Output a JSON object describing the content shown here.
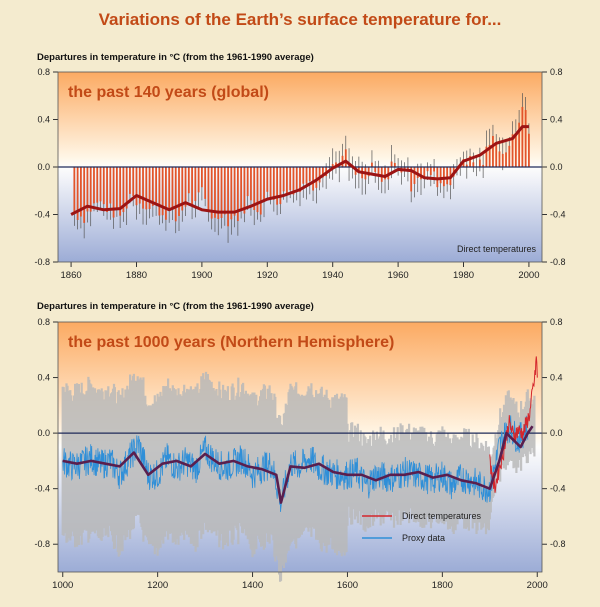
{
  "title": "Variations of the Earth’s surface temperature for...",
  "colors": {
    "background": "#f4ebcf",
    "title": "#c24a17",
    "direct_bars": "#e2542a",
    "smooth_line": "#9c1414",
    "proxy": "#2f8fd8",
    "uncertainty": "#b9b9b9"
  },
  "chart_data": [
    {
      "type": "bar",
      "ylabel": "Departures in temperature in °C (from the 1961-1990 average)",
      "panel_label": "the past 140 years (global)",
      "note": "Direct temperatures",
      "xlim": [
        1856,
        2004
      ],
      "ylim": [
        -0.8,
        0.8
      ],
      "xticks": [
        1860,
        1880,
        1900,
        1920,
        1940,
        1960,
        1980,
        2000
      ],
      "yticks": [
        -0.8,
        -0.4,
        0.0,
        0.4,
        0.8
      ],
      "yticks_left": [
        "0.8",
        "0.4",
        "0.0",
        "-0.4",
        "-0.8"
      ],
      "yticks_right": [
        "0.8",
        "0.4",
        "0.0",
        "-0.4",
        "-0.8"
      ],
      "series": [
        {
          "name": "Direct temperatures",
          "x": [
            1860,
            1862,
            1864,
            1866,
            1868,
            1870,
            1872,
            1874,
            1876,
            1878,
            1880,
            1882,
            1884,
            1886,
            1888,
            1890,
            1892,
            1894,
            1896,
            1898,
            1900,
            1902,
            1904,
            1906,
            1908,
            1910,
            1912,
            1914,
            1916,
            1918,
            1920,
            1922,
            1924,
            1926,
            1928,
            1930,
            1932,
            1934,
            1936,
            1938,
            1940,
            1942,
            1944,
            1946,
            1948,
            1950,
            1952,
            1954,
            1956,
            1958,
            1960,
            1962,
            1964,
            1966,
            1968,
            1970,
            1972,
            1974,
            1976,
            1978,
            1980,
            1982,
            1984,
            1986,
            1988,
            1990,
            1992,
            1994,
            1996,
            1998,
            2000
          ],
          "values": [
            -0.38,
            -0.4,
            -0.42,
            -0.35,
            -0.3,
            -0.32,
            -0.36,
            -0.4,
            -0.4,
            -0.22,
            -0.28,
            -0.3,
            -0.35,
            -0.33,
            -0.4,
            -0.38,
            -0.45,
            -0.36,
            -0.25,
            -0.33,
            -0.2,
            -0.35,
            -0.45,
            -0.37,
            -0.45,
            -0.42,
            -0.4,
            -0.27,
            -0.33,
            -0.35,
            -0.25,
            -0.25,
            -0.28,
            -0.2,
            -0.22,
            -0.15,
            -0.12,
            -0.17,
            -0.08,
            -0.02,
            0.02,
            0.05,
            0.1,
            -0.05,
            -0.08,
            -0.12,
            -0.02,
            -0.1,
            -0.15,
            0.05,
            -0.02,
            0.0,
            -0.15,
            -0.06,
            -0.1,
            -0.05,
            -0.12,
            -0.15,
            -0.1,
            -0.05,
            0.08,
            0.05,
            0.02,
            0.05,
            0.2,
            0.25,
            0.1,
            0.2,
            0.25,
            0.55,
            0.3
          ]
        },
        {
          "name": "smoothed",
          "x": [
            1860,
            1865,
            1870,
            1875,
            1880,
            1885,
            1890,
            1895,
            1900,
            1905,
            1910,
            1915,
            1920,
            1925,
            1930,
            1935,
            1940,
            1944,
            1948,
            1952,
            1956,
            1960,
            1964,
            1968,
            1972,
            1976,
            1980,
            1985,
            1990,
            1995,
            1998,
            2000
          ],
          "values": [
            -0.4,
            -0.33,
            -0.36,
            -0.35,
            -0.24,
            -0.3,
            -0.36,
            -0.3,
            -0.36,
            -0.38,
            -0.38,
            -0.33,
            -0.27,
            -0.24,
            -0.19,
            -0.11,
            -0.01,
            0.05,
            -0.04,
            -0.06,
            -0.08,
            -0.02,
            -0.03,
            -0.09,
            -0.1,
            -0.09,
            0.05,
            0.1,
            0.2,
            0.24,
            0.34,
            0.34
          ]
        }
      ]
    },
    {
      "type": "line",
      "ylabel": "Departures in temperature in °C (from the 1961-1990 average)",
      "panel_label": "the past 1000 years (Northern Hemisphere)",
      "xlim": [
        990,
        2010
      ],
      "ylim": [
        -1.0,
        0.8
      ],
      "xticks": [
        1000,
        1200,
        1400,
        1600,
        1800,
        2000
      ],
      "yticks": [
        -0.8,
        -0.4,
        0.0,
        0.4,
        0.8
      ],
      "yticks_left": [
        "0.8",
        "0.4",
        "0.0",
        "-0.4",
        "-0.8"
      ],
      "yticks_right": [
        "0.8",
        "0.4",
        "0.0",
        "-0.4",
        "-0.8"
      ],
      "legend": {
        "position": "bottom-right",
        "entries": [
          "Direct temperatures",
          "Proxy data"
        ]
      },
      "series": [
        {
          "name": "Proxy data",
          "x": [
            1000,
            1020,
            1040,
            1060,
            1080,
            1100,
            1120,
            1140,
            1160,
            1180,
            1200,
            1220,
            1240,
            1260,
            1280,
            1300,
            1320,
            1340,
            1360,
            1380,
            1400,
            1420,
            1440,
            1460,
            1480,
            1500,
            1520,
            1540,
            1560,
            1580,
            1600,
            1620,
            1640,
            1660,
            1680,
            1700,
            1720,
            1740,
            1760,
            1780,
            1800,
            1820,
            1840,
            1860,
            1880,
            1900,
            1920,
            1940,
            1960,
            1980
          ],
          "values": [
            -0.2,
            -0.24,
            -0.22,
            -0.18,
            -0.23,
            -0.2,
            -0.3,
            -0.18,
            -0.08,
            -0.3,
            -0.3,
            -0.18,
            -0.25,
            -0.2,
            -0.26,
            -0.12,
            -0.2,
            -0.25,
            -0.22,
            -0.18,
            -0.3,
            -0.25,
            -0.22,
            -0.5,
            -0.22,
            -0.24,
            -0.18,
            -0.25,
            -0.28,
            -0.3,
            -0.3,
            -0.28,
            -0.38,
            -0.3,
            -0.32,
            -0.32,
            -0.28,
            -0.3,
            -0.32,
            -0.34,
            -0.3,
            -0.38,
            -0.32,
            -0.34,
            -0.38,
            -0.4,
            -0.1,
            0.05,
            -0.05,
            0.05
          ]
        },
        {
          "name": "Direct temperatures",
          "x": [
            1900,
            1910,
            1920,
            1930,
            1940,
            1950,
            1960,
            1970,
            1980,
            1985,
            1990,
            1995,
            1998,
            2000
          ],
          "values": [
            -0.2,
            -0.4,
            -0.25,
            -0.12,
            0.08,
            -0.02,
            0.02,
            0.0,
            0.1,
            0.15,
            0.3,
            0.4,
            0.55,
            0.4
          ]
        },
        {
          "name": "smoothed",
          "x": [
            1000,
            1030,
            1060,
            1090,
            1120,
            1150,
            1180,
            1210,
            1240,
            1270,
            1300,
            1330,
            1360,
            1390,
            1420,
            1450,
            1460,
            1480,
            1510,
            1540,
            1570,
            1600,
            1630,
            1660,
            1690,
            1720,
            1750,
            1780,
            1810,
            1840,
            1870,
            1900,
            1920,
            1935,
            1950,
            1965,
            1980,
            1990
          ],
          "values": [
            -0.2,
            -0.22,
            -0.2,
            -0.22,
            -0.24,
            -0.14,
            -0.3,
            -0.22,
            -0.2,
            -0.24,
            -0.15,
            -0.22,
            -0.2,
            -0.24,
            -0.26,
            -0.3,
            -0.5,
            -0.24,
            -0.25,
            -0.22,
            -0.28,
            -0.3,
            -0.3,
            -0.34,
            -0.3,
            -0.3,
            -0.28,
            -0.32,
            -0.3,
            -0.34,
            -0.36,
            -0.4,
            -0.2,
            0.0,
            -0.05,
            -0.1,
            0.0,
            0.05
          ]
        }
      ]
    }
  ]
}
